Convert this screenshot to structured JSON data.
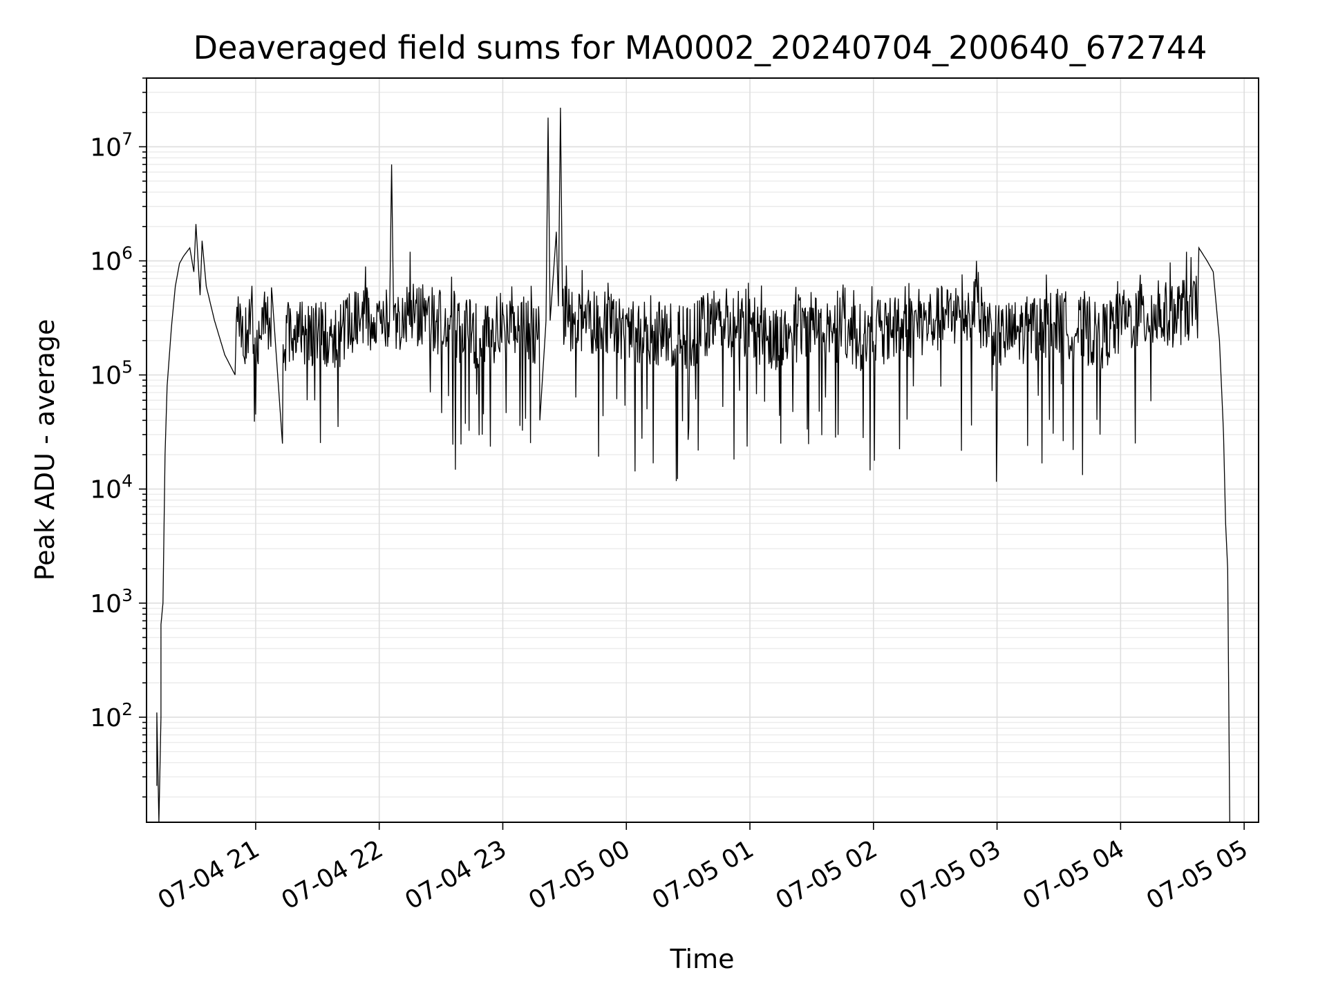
{
  "chart_data": {
    "type": "line",
    "title": "Deaveraged field sums for MA0002_20240704_200640_672744",
    "xlabel": "Time",
    "ylabel": "Peak ADU - average",
    "yscale": "log",
    "grid": "on (major and minor)",
    "x_axis": {
      "kind": "datetime",
      "range": [
        "2024-07-04 20:07",
        "2024-07-05 05:07"
      ],
      "ticks": [
        {
          "value": "2024-07-04 21:00",
          "label": "07-04 21"
        },
        {
          "value": "2024-07-04 22:00",
          "label": "07-04 22"
        },
        {
          "value": "2024-07-04 23:00",
          "label": "07-04 23"
        },
        {
          "value": "2024-07-05 00:00",
          "label": "07-05 00"
        },
        {
          "value": "2024-07-05 01:00",
          "label": "07-05 01"
        },
        {
          "value": "2024-07-05 02:00",
          "label": "07-05 02"
        },
        {
          "value": "2024-07-05 03:00",
          "label": "07-05 03"
        },
        {
          "value": "2024-07-05 04:00",
          "label": "07-05 04"
        },
        {
          "value": "2024-07-05 05:00",
          "label": "07-05 05"
        }
      ]
    },
    "y_axis": {
      "range": [
        12,
        40000000
      ],
      "ticks": [
        {
          "value": 100,
          "base": "10",
          "exp": "2"
        },
        {
          "value": 1000,
          "base": "10",
          "exp": "3"
        },
        {
          "value": 10000,
          "base": "10",
          "exp": "4"
        },
        {
          "value": 100000,
          "base": "10",
          "exp": "5"
        },
        {
          "value": 1000000,
          "base": "10",
          "exp": "6"
        },
        {
          "value": 10000000,
          "base": "10",
          "exp": "7"
        }
      ]
    },
    "series": [
      {
        "points": [
          [
            "2024-07-04 20:12",
            25
          ],
          [
            "2024-07-04 20:12",
            110
          ],
          [
            "2024-07-04 20:13",
            12
          ],
          [
            "2024-07-04 20:14",
            100
          ],
          [
            "2024-07-04 20:14",
            650
          ],
          [
            "2024-07-04 20:15",
            1000
          ],
          [
            "2024-07-04 20:16",
            20000
          ],
          [
            "2024-07-04 20:17",
            80000
          ],
          [
            "2024-07-04 20:19",
            250000
          ],
          [
            "2024-07-04 20:21",
            600000
          ],
          [
            "2024-07-04 20:23",
            950000
          ],
          [
            "2024-07-04 20:25",
            1100000
          ],
          [
            "2024-07-04 20:28",
            1300000
          ],
          [
            "2024-07-04 20:30",
            800000
          ],
          [
            "2024-07-04 20:31",
            2100000
          ],
          [
            "2024-07-04 20:33",
            500000
          ],
          [
            "2024-07-04 20:34",
            1500000
          ],
          [
            "2024-07-04 20:36",
            600000
          ],
          [
            "2024-07-04 20:40",
            300000
          ],
          [
            "2024-07-04 20:45",
            150000
          ],
          [
            "2024-07-04 20:50",
            100000
          ],
          [
            "2024-07-04 21:00",
            45000
          ],
          [
            "2024-07-04 21:08",
            500000
          ],
          [
            "2024-07-04 21:13",
            25000
          ],
          [
            "2024-07-04 21:25",
            60000
          ],
          [
            "2024-07-04 21:40",
            35000
          ],
          [
            "2024-07-04 21:50",
            400000
          ],
          [
            "2024-07-04 22:05",
            300000
          ],
          [
            "2024-07-04 22:06",
            7000000
          ],
          [
            "2024-07-04 22:07",
            300000
          ],
          [
            "2024-07-04 22:15",
            1200000
          ],
          [
            "2024-07-04 22:30",
            200000
          ],
          [
            "2024-07-04 22:50",
            30000
          ],
          [
            "2024-07-04 23:05",
            400000
          ],
          [
            "2024-07-04 23:18",
            40000
          ],
          [
            "2024-07-04 23:21",
            300000
          ],
          [
            "2024-07-04 23:22",
            18000000
          ],
          [
            "2024-07-04 23:23",
            300000
          ],
          [
            "2024-07-04 23:26",
            1800000
          ],
          [
            "2024-07-04 23:27",
            400000
          ],
          [
            "2024-07-04 23:28",
            22000000
          ],
          [
            "2024-07-04 23:29",
            400000
          ],
          [
            "2024-07-04 23:45",
            200000
          ],
          [
            "2024-07-05 00:10",
            50000
          ],
          [
            "2024-07-05 00:30",
            27000
          ],
          [
            "2024-07-05 00:45",
            300000
          ],
          [
            "2024-07-05 01:15",
            25000
          ],
          [
            "2024-07-05 01:30",
            300000
          ],
          [
            "2024-07-05 01:55",
            28000
          ],
          [
            "2024-07-05 02:30",
            300000
          ],
          [
            "2024-07-05 02:50",
            1000000
          ],
          [
            "2024-07-05 03:00",
            30000
          ],
          [
            "2024-07-05 03:30",
            250000
          ],
          [
            "2024-07-05 03:50",
            30000
          ],
          [
            "2024-07-05 04:05",
            400000
          ],
          [
            "2024-07-05 04:15",
            500000
          ],
          [
            "2024-07-05 04:25",
            600000
          ],
          [
            "2024-07-05 04:32",
            1200000
          ],
          [
            "2024-07-05 04:38",
            1300000
          ],
          [
            "2024-07-05 04:42",
            1000000
          ],
          [
            "2024-07-05 04:45",
            800000
          ],
          [
            "2024-07-05 04:48",
            200000
          ],
          [
            "2024-07-05 04:50",
            30000
          ],
          [
            "2024-07-05 04:51",
            5000
          ],
          [
            "2024-07-05 04:52",
            2000
          ],
          [
            "2024-07-05 04:53",
            12
          ]
        ]
      }
    ]
  }
}
